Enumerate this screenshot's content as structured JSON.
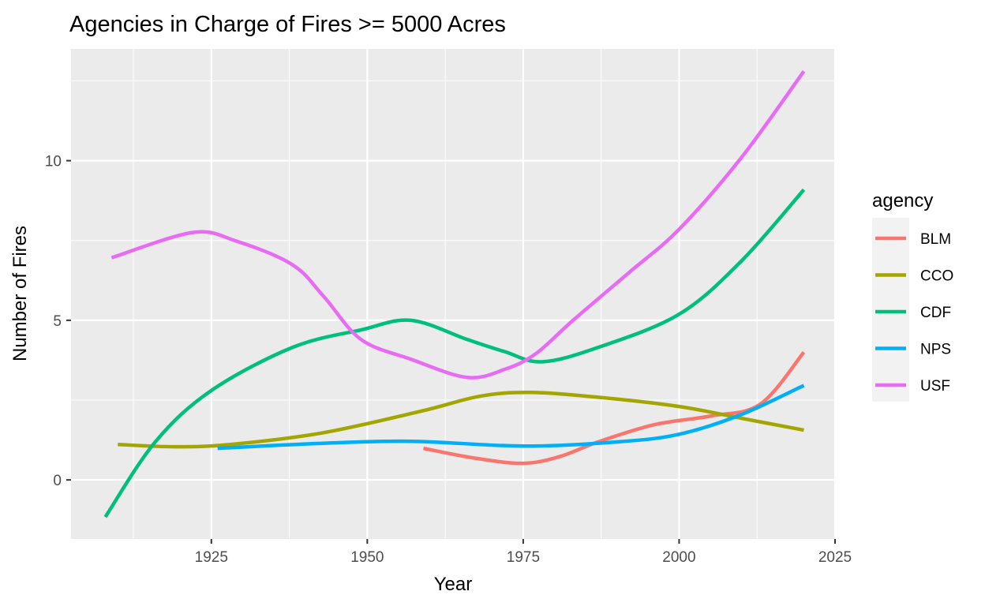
{
  "chart_data": {
    "type": "line",
    "title": "Agencies in Charge of Fires >= 5000 Acres",
    "xlabel": "Year",
    "ylabel": "Number of Fires",
    "xlim": [
      1902.5,
      2025
    ],
    "ylim": [
      -1.85,
      13.5
    ],
    "xticks": [
      1925,
      1950,
      1975,
      2000,
      2025
    ],
    "yticks": [
      0,
      5,
      10
    ],
    "grid": true,
    "legend": {
      "title": "agency",
      "placement": "right"
    },
    "series": [
      {
        "name": "BLM",
        "color": "#F8766D",
        "x": [
          1959,
          1967,
          1975,
          1981,
          1987,
          1996,
          2005,
          2013,
          2020
        ],
        "y": [
          0.99,
          0.69,
          0.52,
          0.74,
          1.19,
          1.73,
          2.0,
          2.37,
          4.0
        ]
      },
      {
        "name": "CCO",
        "color": "#A3A500",
        "x": [
          1910,
          1919,
          1928,
          1943,
          1959,
          1968,
          1976,
          1987,
          2000,
          2010,
          2020
        ],
        "y": [
          1.11,
          1.04,
          1.11,
          1.48,
          2.17,
          2.62,
          2.74,
          2.59,
          2.3,
          1.93,
          1.56
        ]
      },
      {
        "name": "CDF",
        "color": "#00BF7D",
        "x": [
          1908,
          1916,
          1925,
          1938,
          1949,
          1957,
          1966,
          1972,
          1978,
          1987,
          2000,
          2010,
          2020
        ],
        "y": [
          -1.16,
          1.19,
          2.8,
          4.15,
          4.7,
          5.0,
          4.4,
          4.02,
          3.7,
          4.15,
          5.19,
          6.86,
          9.09
        ]
      },
      {
        "name": "NPS",
        "color": "#00B0F6",
        "x": [
          1926,
          1942,
          1957,
          1975,
          1990,
          2000,
          2010,
          2020
        ],
        "y": [
          0.99,
          1.14,
          1.21,
          1.06,
          1.19,
          1.43,
          2.05,
          2.96
        ]
      },
      {
        "name": "USF",
        "color": "#E76BF3",
        "x": [
          1909,
          1922,
          1929,
          1938,
          1943,
          1949,
          1957,
          1966,
          1972,
          1977,
          1983,
          1992,
          2000,
          2010,
          2020
        ],
        "y": [
          6.96,
          7.75,
          7.48,
          6.74,
          5.75,
          4.4,
          3.78,
          3.21,
          3.46,
          3.95,
          5.0,
          6.5,
          7.85,
          10.1,
          12.8
        ]
      }
    ]
  }
}
